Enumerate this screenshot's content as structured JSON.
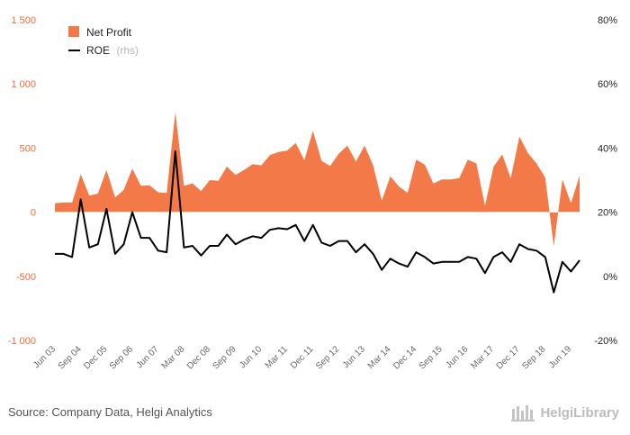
{
  "chart_data": {
    "type": "area+line",
    "series": [
      {
        "name": "Net Profit",
        "axis": "left",
        "type": "area",
        "color": "#f37a48",
        "values": [
          70,
          75,
          75,
          295,
          130,
          145,
          330,
          115,
          175,
          340,
          205,
          210,
          155,
          150,
          780,
          205,
          225,
          165,
          250,
          245,
          355,
          290,
          330,
          375,
          365,
          445,
          470,
          480,
          540,
          405,
          635,
          400,
          360,
          455,
          520,
          395,
          520,
          365,
          90,
          280,
          200,
          150,
          410,
          370,
          225,
          255,
          255,
          265,
          410,
          380,
          50,
          355,
          450,
          265,
          590,
          460,
          380,
          270,
          -265,
          255,
          70,
          285
        ]
      },
      {
        "name": "ROE",
        "name_suffix": "(rhs)",
        "axis": "right",
        "type": "line",
        "color": "#000000",
        "values": [
          7,
          7,
          6,
          24,
          9,
          10,
          21,
          7,
          10,
          20,
          12,
          12,
          8,
          7.5,
          39,
          9,
          9.5,
          6.5,
          9.5,
          9.5,
          13,
          10,
          11.5,
          12.5,
          12,
          14.5,
          15,
          14.7,
          16,
          11,
          16,
          10.5,
          9.5,
          11,
          11,
          7.5,
          10,
          7,
          2,
          5.5,
          4,
          3,
          7.5,
          6,
          4,
          4.5,
          4.5,
          4.5,
          6,
          5.5,
          1,
          6,
          7.5,
          4.5,
          10,
          8.5,
          8,
          6,
          -5,
          4.5,
          1.5,
          5
        ]
      }
    ],
    "x_labels": [
      "Jun 03",
      "Sep 04",
      "Dec 05",
      "Sep 06",
      "Jun 07",
      "Mar 08",
      "Dec 08",
      "Sep 09",
      "Jun 10",
      "Mar 11",
      "Dec 11",
      "Sep 12",
      "Jun 13",
      "Mar 14",
      "Dec 14",
      "Sep 15",
      "Jun 16",
      "Mar 17",
      "Dec 17",
      "Sep 18",
      "Jun 19"
    ],
    "y_left": {
      "ylim": [
        -1000,
        1500
      ],
      "ticks": [
        "-1 000",
        "-500",
        "0",
        "500",
        "1 000",
        "1 500"
      ]
    },
    "y_right": {
      "ylim": [
        -20,
        80
      ],
      "ticks": [
        "-20%",
        "0%",
        "20%",
        "40%",
        "60%",
        "80%"
      ]
    },
    "legend_position": "top-left",
    "grid": false
  },
  "footer": {
    "source": "Source: Company Data, Helgi Analytics",
    "brand": "HelgiLibrary"
  },
  "colors": {
    "area": "#f37a48",
    "line": "#000000",
    "left_axis_text": "#ee6b3b"
  }
}
